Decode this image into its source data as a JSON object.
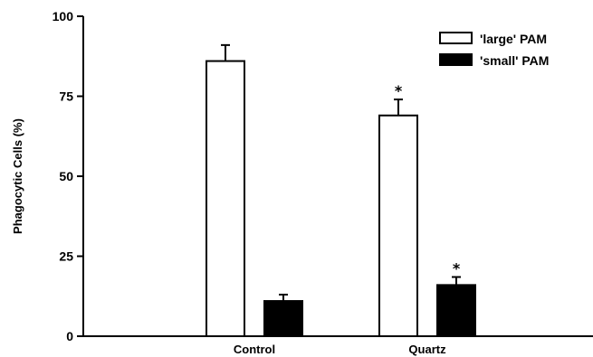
{
  "chart_data": {
    "type": "bar",
    "ylabel": "Phagocytic Cells (%)",
    "xlabel": "",
    "ylim": [
      0,
      100
    ],
    "yticks": [
      0,
      25,
      50,
      75,
      100
    ],
    "categories": [
      "Control",
      "Quartz"
    ],
    "series": [
      {
        "name": "'large' PAM",
        "fill": "#ffffff",
        "values": [
          86,
          69
        ],
        "errors": [
          5,
          5
        ],
        "significance": [
          "",
          "*"
        ]
      },
      {
        "name": "'small' PAM",
        "fill": "#000000",
        "values": [
          11,
          16
        ],
        "errors": [
          2,
          2.5
        ],
        "significance": [
          "",
          "*"
        ]
      }
    ],
    "grid": false,
    "legend_position": "top-right"
  }
}
